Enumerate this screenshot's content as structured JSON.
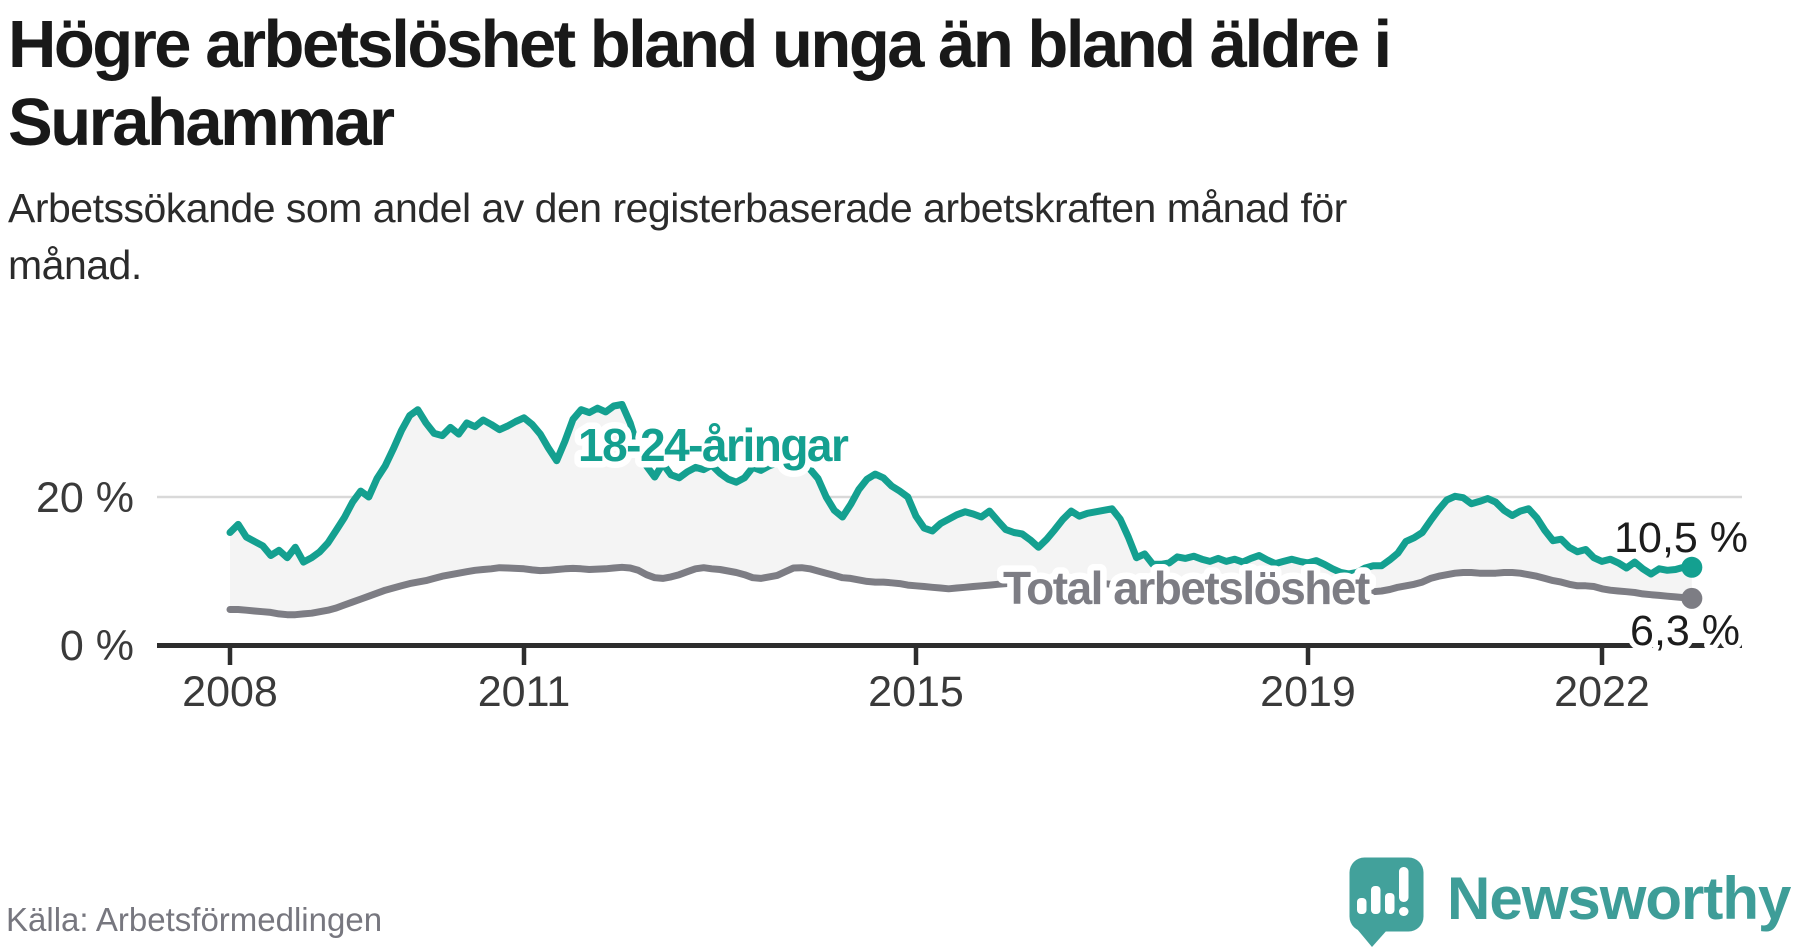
{
  "header": {
    "title_lines": [
      "Högre arbetslöshet bland unga än bland äldre i",
      "Surahammar"
    ],
    "title_full": "Högre arbetslöshet bland unga än bland äldre i Surahammar",
    "subtitle_lines": [
      "Arbetssökande som andel av den registerbaserade arbetskraften månad för",
      "månad."
    ],
    "subtitle_full": "Arbetssökande som andel av den registerbaserade arbetskraften månad för månad."
  },
  "footer": {
    "source": "Källa: Arbetsförmedlingen",
    "brand": "Newsworthy",
    "logo_icon": "speech-bubble-bar-chart-icon"
  },
  "colors": {
    "accent_teal": "#14a090",
    "logo_teal": "#42a19b",
    "wordmark_teal": "#3e9d98",
    "line_gray": "#7d7d84",
    "band_fill": "#f4f4f4",
    "gridline": "#d9d9d9",
    "axis": "#2d2d2d",
    "title_text": "#191919",
    "muted_text": "#77777f"
  },
  "chart_data": {
    "type": "line",
    "title": "Arbetssökande som andel av den registerbaserade arbetskraften månad för månad",
    "frequency": "monthly",
    "start": "2008-01",
    "end": "2022-12",
    "grid": "horizontal-only",
    "ylim": [
      0,
      40
    ],
    "y_unit": "%",
    "y_ticks": [
      {
        "value": 0,
        "label": "0 %"
      },
      {
        "value": 20,
        "label": "20 %"
      }
    ],
    "x_ticks": [
      {
        "year": 2008,
        "label": "2008"
      },
      {
        "year": 2011,
        "label": "2011"
      },
      {
        "year": 2015,
        "label": "2015"
      },
      {
        "year": 2019,
        "label": "2019"
      },
      {
        "year": 2022,
        "label": "2022"
      }
    ],
    "band_fill_between_series": "#f4f4f4",
    "series": [
      {
        "name": "18-24-åringar",
        "color": "#14a090",
        "end_value": 10.5,
        "end_label": "10,5 %",
        "values": [
          15.2,
          16.3,
          14.6,
          14.0,
          13.4,
          12.1,
          12.8,
          11.8,
          13.2,
          11.2,
          11.8,
          12.6,
          13.8,
          15.5,
          17.2,
          19.3,
          20.8,
          20.0,
          22.5,
          24.2,
          26.5,
          29.0,
          31.0,
          31.8,
          30.0,
          28.6,
          28.3,
          29.4,
          28.5,
          30.0,
          29.5,
          30.4,
          29.8,
          29.1,
          29.6,
          30.2,
          30.7,
          29.8,
          28.5,
          26.6,
          24.9,
          27.5,
          30.5,
          31.8,
          31.4,
          32.0,
          31.5,
          32.3,
          32.5,
          30.0,
          26.5,
          24.2,
          22.7,
          24.5,
          23.0,
          22.6,
          23.4,
          24.0,
          23.7,
          24.3,
          23.2,
          22.4,
          22.0,
          22.6,
          24.0,
          23.6,
          24.2,
          24.6,
          24.3,
          24.6,
          24.4,
          23.8,
          22.5,
          20.0,
          18.2,
          17.3,
          19.0,
          21.0,
          22.4,
          23.1,
          22.6,
          21.5,
          20.8,
          20.0,
          17.4,
          15.8,
          15.4,
          16.4,
          17.0,
          17.6,
          18.0,
          17.7,
          17.3,
          18.1,
          16.8,
          15.6,
          15.2,
          15.0,
          14.2,
          13.2,
          14.3,
          15.6,
          17.0,
          18.1,
          17.4,
          17.8,
          18.0,
          18.2,
          18.4,
          17.0,
          14.6,
          11.8,
          12.3,
          10.9,
          10.9,
          11.1,
          11.9,
          11.7,
          12.0,
          11.6,
          11.3,
          11.7,
          11.3,
          11.6,
          11.2,
          11.7,
          12.1,
          11.5,
          11.0,
          11.3,
          11.6,
          11.3,
          11.1,
          11.4,
          10.9,
          10.3,
          9.8,
          9.6,
          9.8,
          10.4,
          10.7,
          10.7,
          11.5,
          12.4,
          14.0,
          14.5,
          15.2,
          16.8,
          18.3,
          19.6,
          20.1,
          19.9,
          19.1,
          19.4,
          19.8,
          19.3,
          18.2,
          17.5,
          18.1,
          18.4,
          17.2,
          15.5,
          14.1,
          14.3,
          13.2,
          12.6,
          12.9,
          11.8,
          11.3,
          11.6,
          11.1,
          10.4,
          11.2,
          10.3,
          9.6,
          10.3,
          10.1,
          10.2,
          10.5,
          10.5
        ]
      },
      {
        "name": "Total arbetslöshet",
        "color": "#7d7d84",
        "end_value": 6.3,
        "end_label": "6,3 %",
        "values": [
          4.8,
          4.8,
          4.7,
          4.6,
          4.5,
          4.4,
          4.2,
          4.1,
          4.1,
          4.2,
          4.3,
          4.5,
          4.7,
          5.0,
          5.4,
          5.8,
          6.2,
          6.6,
          7.0,
          7.4,
          7.7,
          8.0,
          8.3,
          8.5,
          8.7,
          9.0,
          9.3,
          9.5,
          9.7,
          9.9,
          10.1,
          10.2,
          10.3,
          10.45,
          10.4,
          10.35,
          10.3,
          10.15,
          10.05,
          10.1,
          10.2,
          10.3,
          10.35,
          10.3,
          10.2,
          10.25,
          10.3,
          10.4,
          10.5,
          10.4,
          10.1,
          9.5,
          9.1,
          9.0,
          9.2,
          9.5,
          9.9,
          10.3,
          10.45,
          10.3,
          10.2,
          10.0,
          9.8,
          9.5,
          9.1,
          9.0,
          9.2,
          9.4,
          9.9,
          10.4,
          10.45,
          10.3,
          10.0,
          9.7,
          9.4,
          9.1,
          9.0,
          8.8,
          8.6,
          8.5,
          8.5,
          8.4,
          8.3,
          8.1,
          8.0,
          7.9,
          7.8,
          7.7,
          7.6,
          7.7,
          7.8,
          7.9,
          8.0,
          8.1,
          8.2,
          8.3,
          8.4,
          8.5,
          8.5,
          8.4,
          8.3,
          8.3,
          8.4,
          8.5,
          8.5,
          8.4,
          8.3,
          8.3,
          8.2,
          8.1,
          8.0,
          7.9,
          7.8,
          7.7,
          7.7,
          7.8,
          7.8,
          7.7,
          7.6,
          7.5,
          7.4,
          7.3,
          7.2,
          7.2,
          7.1,
          7.0,
          7.1,
          7.2,
          7.1,
          7.0,
          7.0,
          7.1,
          7.0,
          6.9,
          6.9,
          6.8,
          6.8,
          6.9,
          7.0,
          7.1,
          7.2,
          7.3,
          7.5,
          7.8,
          8.0,
          8.2,
          8.5,
          9.0,
          9.3,
          9.5,
          9.7,
          9.8,
          9.8,
          9.7,
          9.7,
          9.7,
          9.8,
          9.8,
          9.7,
          9.5,
          9.3,
          9.0,
          8.7,
          8.5,
          8.2,
          8.0,
          8.0,
          7.9,
          7.6,
          7.4,
          7.3,
          7.2,
          7.1,
          6.9,
          6.8,
          6.7,
          6.6,
          6.5,
          6.4,
          6.3
        ]
      }
    ]
  }
}
